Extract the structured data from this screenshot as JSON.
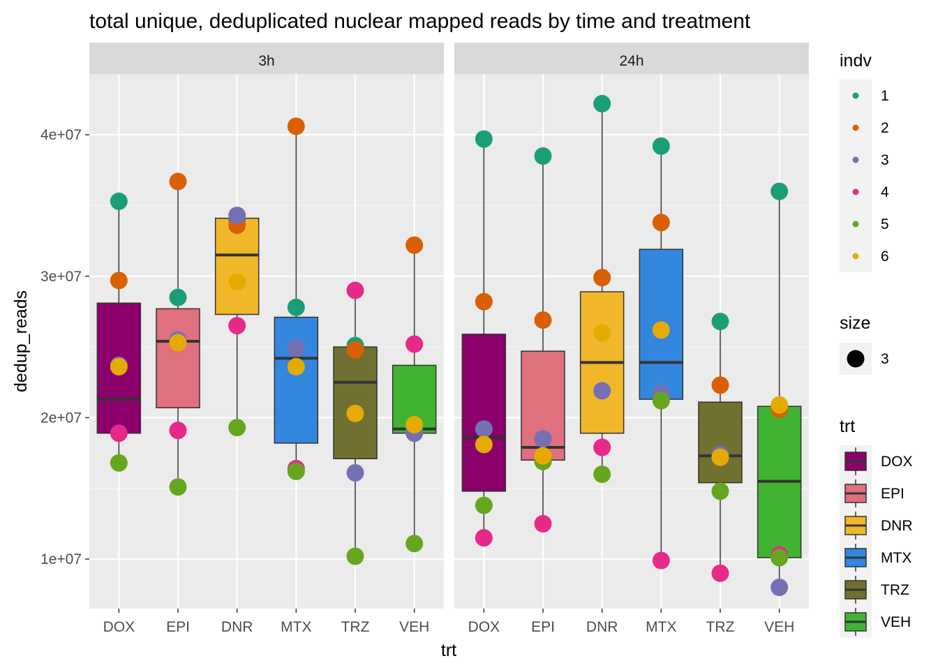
{
  "chart_data": {
    "type": "boxplot",
    "title": "total unique, deduplicated nuclear mapped reads by time and treatment",
    "xlabel": "trt",
    "ylabel": "dedup_reads",
    "ylim": [
      6500000,
      44300000
    ],
    "y_ticks": [
      10000000,
      20000000,
      30000000,
      40000000
    ],
    "y_tick_labels": [
      "1e+07",
      "2e+07",
      "3e+07",
      "4e+07"
    ],
    "categories": [
      "DOX",
      "EPI",
      "DNR",
      "MTX",
      "TRZ",
      "VEH"
    ],
    "grid": true,
    "legend_placement": "right",
    "facets": [
      {
        "label": "3h",
        "boxes": [
          {
            "trt": "DOX",
            "q1": 18900000,
            "median": 21300000,
            "q3": 28100000,
            "whisker_low": 16800000,
            "whisker_high": 35300000
          },
          {
            "trt": "EPI",
            "q1": 20700000,
            "median": 25400000,
            "q3": 27700000,
            "whisker_low": 15100000,
            "whisker_high": 36700000
          },
          {
            "trt": "DNR",
            "q1": 27300000,
            "median": 31500000,
            "q3": 34100000,
            "whisker_low": 19300000,
            "whisker_high": 34300000
          },
          {
            "trt": "MTX",
            "q1": 18200000,
            "median": 24200000,
            "q3": 27100000,
            "whisker_low": 16200000,
            "whisker_high": 40600000
          },
          {
            "trt": "TRZ",
            "q1": 17100000,
            "median": 22500000,
            "q3": 25000000,
            "whisker_low": 10200000,
            "whisker_high": 29000000
          },
          {
            "trt": "VEH",
            "q1": 18900000,
            "median": 19200000,
            "q3": 23700000,
            "whisker_low": 11100000,
            "whisker_high": 32200000
          }
        ],
        "points": [
          {
            "trt": "DOX",
            "indv": "1",
            "value": 35300000
          },
          {
            "trt": "DOX",
            "indv": "2",
            "value": 29700000
          },
          {
            "trt": "DOX",
            "indv": "3",
            "value": 23700000
          },
          {
            "trt": "DOX",
            "indv": "4",
            "value": 18900000
          },
          {
            "trt": "DOX",
            "indv": "5",
            "value": 16800000
          },
          {
            "trt": "DOX",
            "indv": "6",
            "value": 23600000
          },
          {
            "trt": "EPI",
            "indv": "1",
            "value": 28500000
          },
          {
            "trt": "EPI",
            "indv": "2",
            "value": 36700000
          },
          {
            "trt": "EPI",
            "indv": "3",
            "value": 25500000
          },
          {
            "trt": "EPI",
            "indv": "4",
            "value": 19100000
          },
          {
            "trt": "EPI",
            "indv": "5",
            "value": 15100000
          },
          {
            "trt": "EPI",
            "indv": "6",
            "value": 25300000
          },
          {
            "trt": "DNR",
            "indv": "1",
            "value": 34000000
          },
          {
            "trt": "DNR",
            "indv": "2",
            "value": 33600000
          },
          {
            "trt": "DNR",
            "indv": "3",
            "value": 34300000
          },
          {
            "trt": "DNR",
            "indv": "4",
            "value": 26500000
          },
          {
            "trt": "DNR",
            "indv": "5",
            "value": 19300000
          },
          {
            "trt": "DNR",
            "indv": "6",
            "value": 29600000
          },
          {
            "trt": "MTX",
            "indv": "1",
            "value": 27800000
          },
          {
            "trt": "MTX",
            "indv": "2",
            "value": 40600000
          },
          {
            "trt": "MTX",
            "indv": "3",
            "value": 24900000
          },
          {
            "trt": "MTX",
            "indv": "4",
            "value": 16400000
          },
          {
            "trt": "MTX",
            "indv": "5",
            "value": 16200000
          },
          {
            "trt": "MTX",
            "indv": "6",
            "value": 23600000
          },
          {
            "trt": "TRZ",
            "indv": "1",
            "value": 25100000
          },
          {
            "trt": "TRZ",
            "indv": "2",
            "value": 24800000
          },
          {
            "trt": "TRZ",
            "indv": "3",
            "value": 16100000
          },
          {
            "trt": "TRZ",
            "indv": "4",
            "value": 29000000
          },
          {
            "trt": "TRZ",
            "indv": "5",
            "value": 10200000
          },
          {
            "trt": "TRZ",
            "indv": "6",
            "value": 20300000
          },
          {
            "trt": "VEH",
            "indv": "1",
            "value": 19200000
          },
          {
            "trt": "VEH",
            "indv": "2",
            "value": 32200000
          },
          {
            "trt": "VEH",
            "indv": "3",
            "value": 18900000
          },
          {
            "trt": "VEH",
            "indv": "4",
            "value": 25200000
          },
          {
            "trt": "VEH",
            "indv": "5",
            "value": 11100000
          },
          {
            "trt": "VEH",
            "indv": "6",
            "value": 19500000
          }
        ]
      },
      {
        "label": "24h",
        "boxes": [
          {
            "trt": "DOX",
            "q1": 14800000,
            "median": 18600000,
            "q3": 25900000,
            "whisker_low": 11500000,
            "whisker_high": 39700000
          },
          {
            "trt": "EPI",
            "q1": 17000000,
            "median": 17900000,
            "q3": 24700000,
            "whisker_low": 12500000,
            "whisker_high": 38500000
          },
          {
            "trt": "DNR",
            "q1": 18900000,
            "median": 23900000,
            "q3": 28900000,
            "whisker_low": 16000000,
            "whisker_high": 42200000
          },
          {
            "trt": "MTX",
            "q1": 21300000,
            "median": 23900000,
            "q3": 31900000,
            "whisker_low": 9900000,
            "whisker_high": 39200000
          },
          {
            "trt": "TRZ",
            "q1": 15400000,
            "median": 17300000,
            "q3": 21100000,
            "whisker_low": 9000000,
            "whisker_high": 26800000
          },
          {
            "trt": "VEH",
            "q1": 10100000,
            "median": 15500000,
            "q3": 20800000,
            "whisker_low": 8000000,
            "whisker_high": 36000000
          }
        ],
        "points": [
          {
            "trt": "DOX",
            "indv": "1",
            "value": 39700000
          },
          {
            "trt": "DOX",
            "indv": "2",
            "value": 28200000
          },
          {
            "trt": "DOX",
            "indv": "3",
            "value": 19200000
          },
          {
            "trt": "DOX",
            "indv": "4",
            "value": 11500000
          },
          {
            "trt": "DOX",
            "indv": "5",
            "value": 13800000
          },
          {
            "trt": "DOX",
            "indv": "6",
            "value": 18100000
          },
          {
            "trt": "EPI",
            "indv": "1",
            "value": 38500000
          },
          {
            "trt": "EPI",
            "indv": "2",
            "value": 26900000
          },
          {
            "trt": "EPI",
            "indv": "3",
            "value": 18500000
          },
          {
            "trt": "EPI",
            "indv": "4",
            "value": 12500000
          },
          {
            "trt": "EPI",
            "indv": "5",
            "value": 16900000
          },
          {
            "trt": "EPI",
            "indv": "6",
            "value": 17300000
          },
          {
            "trt": "DNR",
            "indv": "1",
            "value": 42200000
          },
          {
            "trt": "DNR",
            "indv": "2",
            "value": 29900000
          },
          {
            "trt": "DNR",
            "indv": "3",
            "value": 21900000
          },
          {
            "trt": "DNR",
            "indv": "4",
            "value": 17900000
          },
          {
            "trt": "DNR",
            "indv": "5",
            "value": 16000000
          },
          {
            "trt": "DNR",
            "indv": "6",
            "value": 26000000
          },
          {
            "trt": "MTX",
            "indv": "1",
            "value": 39200000
          },
          {
            "trt": "MTX",
            "indv": "2",
            "value": 33800000
          },
          {
            "trt": "MTX",
            "indv": "3",
            "value": 21700000
          },
          {
            "trt": "MTX",
            "indv": "4",
            "value": 9900000
          },
          {
            "trt": "MTX",
            "indv": "5",
            "value": 21200000
          },
          {
            "trt": "MTX",
            "indv": "6",
            "value": 26200000
          },
          {
            "trt": "TRZ",
            "indv": "1",
            "value": 26800000
          },
          {
            "trt": "TRZ",
            "indv": "2",
            "value": 22300000
          },
          {
            "trt": "TRZ",
            "indv": "3",
            "value": 17400000
          },
          {
            "trt": "TRZ",
            "indv": "4",
            "value": 9000000
          },
          {
            "trt": "TRZ",
            "indv": "5",
            "value": 14800000
          },
          {
            "trt": "TRZ",
            "indv": "6",
            "value": 17200000
          },
          {
            "trt": "VEH",
            "indv": "1",
            "value": 36000000
          },
          {
            "trt": "VEH",
            "indv": "2",
            "value": 20600000
          },
          {
            "trt": "VEH",
            "indv": "3",
            "value": 8000000
          },
          {
            "trt": "VEH",
            "indv": "4",
            "value": 10300000
          },
          {
            "trt": "VEH",
            "indv": "5",
            "value": 10100000
          },
          {
            "trt": "VEH",
            "indv": "6",
            "value": 20900000
          }
        ]
      }
    ],
    "trt_colors": {
      "DOX": "#8B006B",
      "EPI": "#DF707E",
      "DNR": "#F1B72B",
      "MTX": "#3386DD",
      "TRZ": "#707031",
      "VEH": "#41B333"
    },
    "indv_colors": {
      "1": "#1B9E77",
      "2": "#D95F02",
      "3": "#7570B3",
      "4": "#E7298A",
      "5": "#66A61E",
      "6": "#E6AB02"
    },
    "legends": [
      {
        "title": "indv",
        "keys": [
          "1",
          "2",
          "3",
          "4",
          "5",
          "6"
        ]
      },
      {
        "title": "size",
        "keys": [
          "3"
        ]
      },
      {
        "title": "trt",
        "keys": [
          "DOX",
          "EPI",
          "DNR",
          "MTX",
          "TRZ",
          "VEH"
        ]
      }
    ]
  }
}
